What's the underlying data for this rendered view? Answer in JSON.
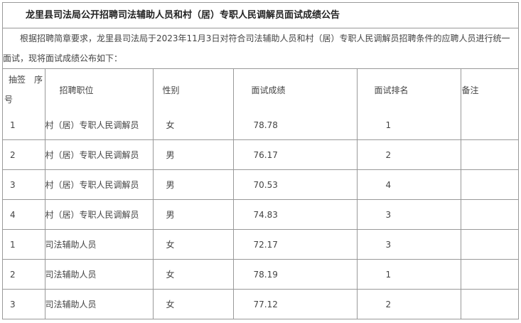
{
  "title": "龙里县司法局公开招聘司法辅助人员和村（居）专职人民调解员面试成绩公告",
  "intro": "根据招聘简章要求，龙里县司法局于2023年11月3日对符合司法辅助人员和村（居）专职人民调解员招聘条件的应聘人员进行统一面试，现将面试成绩公布如下：",
  "headers": {
    "seq_a": "抽签　序",
    "seq_b": "号",
    "position": "招聘职位",
    "gender": "性别",
    "score": "面试成绩",
    "rank": "面试排名",
    "note": "备注"
  },
  "rows": [
    {
      "seq": "1",
      "position": "村（居）专职人民调解员",
      "gender": "女",
      "score": "78.78",
      "rank": "1",
      "note": ""
    },
    {
      "seq": "2",
      "position": "村（居）专职人民调解员",
      "gender": "男",
      "score": "76.17",
      "rank": "2",
      "note": ""
    },
    {
      "seq": "3",
      "position": "村（居）专职人民调解员",
      "gender": "男",
      "score": "70.53",
      "rank": "4",
      "note": ""
    },
    {
      "seq": "4",
      "position": "村（居）专职人民调解员",
      "gender": "男",
      "score": "74.83",
      "rank": "3",
      "note": ""
    },
    {
      "seq": "1",
      "position": "司法辅助人员",
      "gender": "女",
      "score": "72.17",
      "rank": "3",
      "note": ""
    },
    {
      "seq": "2",
      "position": "司法辅助人员",
      "gender": "女",
      "score": "78.19",
      "rank": "1",
      "note": ""
    },
    {
      "seq": "3",
      "position": "司法辅助人员",
      "gender": "女",
      "score": "77.12",
      "rank": "2",
      "note": ""
    }
  ]
}
